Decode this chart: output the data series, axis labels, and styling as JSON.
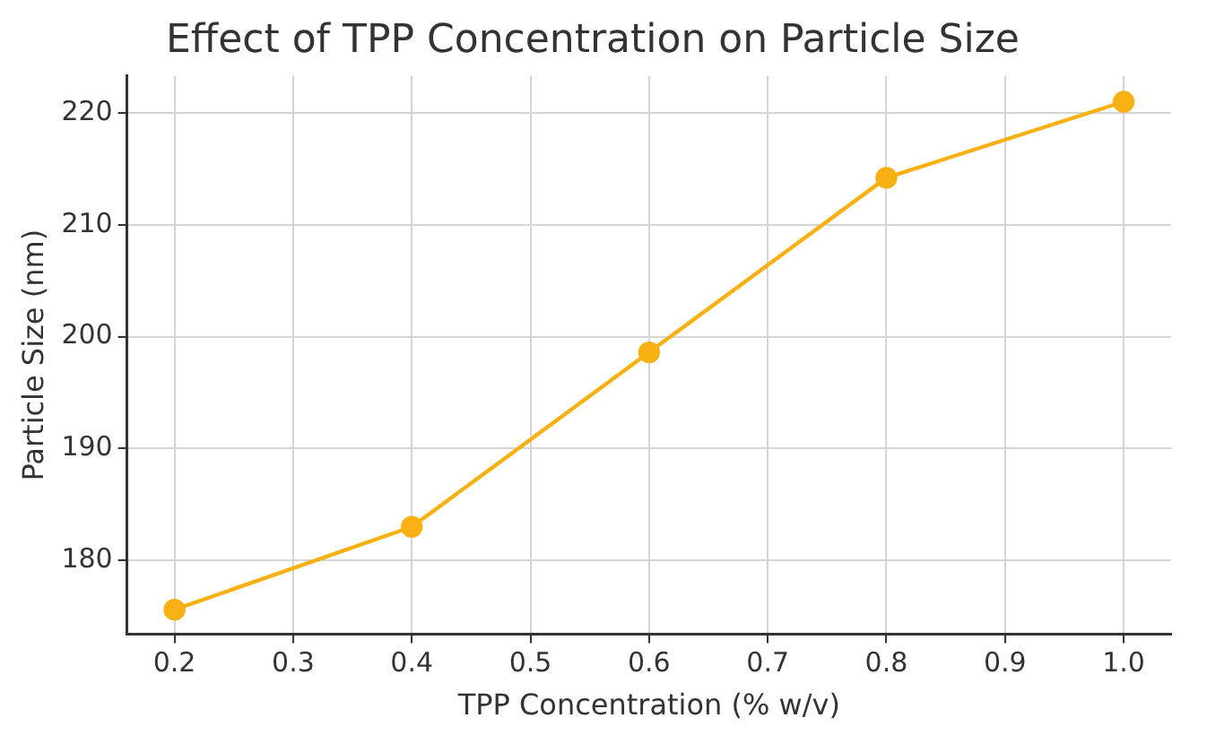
{
  "chart_data": {
    "type": "line",
    "title": "Effect of TPP Concentration on Particle Size",
    "xlabel": "TPP Concentration (% w/v)",
    "ylabel": "Particle Size (nm)",
    "x": [
      0.2,
      0.4,
      0.6,
      0.8,
      1.0
    ],
    "series": [
      {
        "color": "#f8b013",
        "values": [
          175.6,
          183,
          198.6,
          214.2,
          221
        ]
      }
    ],
    "xlim": [
      0.16,
      1.04
    ],
    "xticks": [
      {
        "value": 0.2,
        "label": "0.2"
      },
      {
        "value": 0.3,
        "label": "0.3"
      },
      {
        "value": 0.4,
        "label": "0.4"
      },
      {
        "value": 0.5,
        "label": "0.5"
      },
      {
        "value": 0.6,
        "label": "0.6"
      },
      {
        "value": 0.7,
        "label": "0.7"
      },
      {
        "value": 0.8,
        "label": "0.8"
      },
      {
        "value": 0.9,
        "label": "0.9"
      },
      {
        "value": 1.0,
        "label": "1.0"
      }
    ],
    "ylim": [
      173.4,
      223.3
    ],
    "yticks": [
      180,
      190,
      200,
      210,
      220
    ],
    "grid": true,
    "marker": "circle",
    "line_style": "solid"
  }
}
